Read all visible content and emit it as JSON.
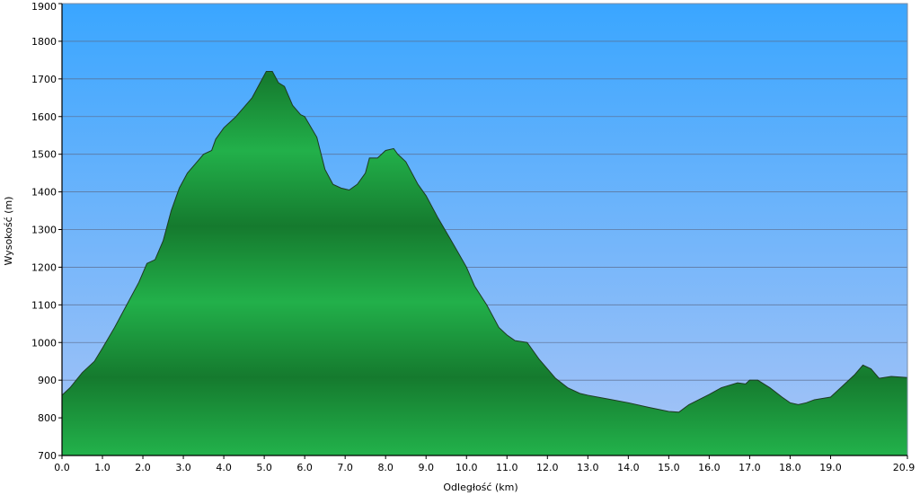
{
  "chart_data": {
    "type": "area",
    "title": "",
    "xlabel": "Odległość  (km)",
    "ylabel": "Wysokość (m)",
    "xlim": [
      0,
      20.9
    ],
    "ylim": [
      700,
      1900
    ],
    "x_ticks": [
      "0.0",
      "1.0",
      "2.0",
      "3.0",
      "4.0",
      "5.0",
      "6.0",
      "7.0",
      "8.0",
      "9.0",
      "10.0",
      "11.0",
      "12.0",
      "13.0",
      "14.0",
      "15.0",
      "16.0",
      "17.0",
      "18.0",
      "19.0",
      "20.9"
    ],
    "x_tick_values": [
      0,
      1,
      2,
      3,
      4,
      5,
      6,
      7,
      8,
      9,
      10,
      11,
      12,
      13,
      14,
      15,
      16,
      17,
      18,
      19,
      20.9
    ],
    "y_ticks": [
      "700",
      "800",
      "900",
      "1000",
      "1100",
      "1200",
      "1300",
      "1400",
      "1500",
      "1600",
      "1700",
      "1800",
      "1900"
    ],
    "y_tick_values": [
      700,
      800,
      900,
      1000,
      1100,
      1200,
      1300,
      1400,
      1500,
      1600,
      1700,
      1800,
      1900
    ],
    "grid": true,
    "colors": {
      "sky_top": "#3aa6ff",
      "sky_bottom": "#a8c4f6",
      "fill_light": "#22b04a",
      "fill_dark": "#157a2e",
      "outline": "#1e3a22",
      "grid": "#5a6a8a"
    },
    "series": [
      {
        "x": [
          0.0,
          0.2,
          0.5,
          0.8,
          1.0,
          1.3,
          1.6,
          1.9,
          2.1,
          2.3,
          2.5,
          2.7,
          2.9,
          3.1,
          3.3,
          3.5,
          3.7,
          3.8,
          4.0,
          4.3,
          4.5,
          4.7,
          4.9,
          5.05,
          5.2,
          5.35,
          5.5,
          5.7,
          5.9,
          6.0,
          6.3,
          6.5,
          6.7,
          6.9,
          7.1,
          7.3,
          7.5,
          7.6,
          7.8,
          8.0,
          8.2,
          8.3,
          8.5,
          8.8,
          9.0,
          9.3,
          9.6,
          10.0,
          10.2,
          10.5,
          10.8,
          11.0,
          11.2,
          11.5,
          11.8,
          12.0,
          12.2,
          12.5,
          12.8,
          13.0,
          13.5,
          14.0,
          14.5,
          15.0,
          15.25,
          15.5,
          16.0,
          16.3,
          16.7,
          16.9,
          17.0,
          17.2,
          17.5,
          17.8,
          18.0,
          18.2,
          18.4,
          18.6,
          19.0,
          19.3,
          19.6,
          19.8,
          20.0,
          20.2,
          20.5,
          20.9
        ],
        "y": [
          860,
          880,
          920,
          950,
          985,
          1040,
          1100,
          1160,
          1210,
          1220,
          1270,
          1350,
          1410,
          1450,
          1475,
          1500,
          1510,
          1540,
          1570,
          1600,
          1625,
          1650,
          1690,
          1720,
          1720,
          1690,
          1680,
          1630,
          1605,
          1600,
          1545,
          1460,
          1420,
          1410,
          1405,
          1420,
          1450,
          1490,
          1490,
          1510,
          1515,
          1500,
          1480,
          1420,
          1390,
          1330,
          1275,
          1200,
          1150,
          1100,
          1040,
          1020,
          1005,
          1000,
          955,
          930,
          905,
          880,
          865,
          860,
          850,
          840,
          828,
          817,
          815,
          835,
          862,
          880,
          893,
          890,
          900,
          900,
          880,
          855,
          840,
          835,
          840,
          848,
          855,
          885,
          915,
          940,
          930,
          905,
          910,
          907
        ]
      }
    ]
  }
}
